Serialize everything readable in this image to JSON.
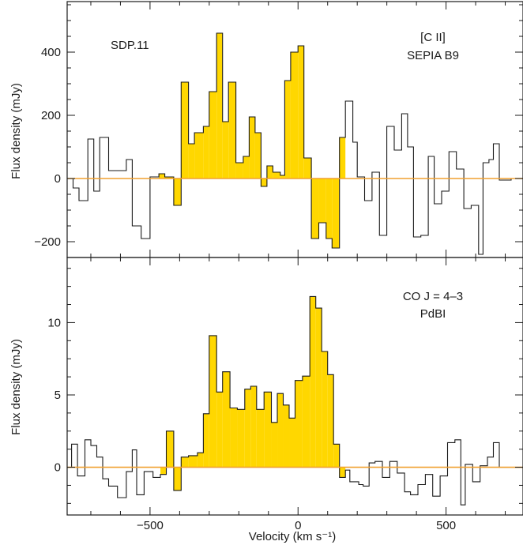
{
  "colors": {
    "fill": "#FFD700",
    "zero_line": "#F0A030",
    "frame": "#1a1a1a",
    "background": "#ffffff"
  },
  "chart_data": [
    {
      "type": "step",
      "label_line1": "[C II]",
      "label_line2": "SEPIA B9",
      "object": "SDP.11",
      "xlabel": "",
      "ylabel": "Flux density (mJy)",
      "xlim": [
        -780,
        760
      ],
      "ylim": [
        -250,
        560
      ],
      "yticks": [
        -200,
        0,
        200,
        400
      ],
      "ytick_labels": [
        "−200",
        "0",
        "200",
        "400"
      ],
      "edges": [
        -780,
        -760,
        -740,
        -710,
        -690,
        -670,
        -640,
        -610,
        -580,
        -560,
        -530,
        -500,
        -470,
        -450,
        -420,
        -395,
        -370,
        -350,
        -320,
        -300,
        -275,
        -255,
        -235,
        -210,
        -185,
        -165,
        -145,
        -125,
        -105,
        -85,
        -60,
        -45,
        -25,
        0,
        20,
        45,
        70,
        95,
        115,
        140,
        160,
        185,
        200,
        225,
        250,
        275,
        300,
        325,
        350,
        370,
        390,
        415,
        440,
        460,
        485,
        510,
        535,
        560,
        585,
        610,
        625,
        645,
        660,
        680,
        705,
        720,
        760
      ],
      "values": [
        0,
        -30,
        -70,
        125,
        -40,
        130,
        25,
        25,
        60,
        -150,
        -190,
        5,
        15,
        5,
        -85,
        305,
        110,
        145,
        165,
        275,
        460,
        180,
        305,
        50,
        70,
        195,
        145,
        -25,
        40,
        20,
        10,
        310,
        400,
        420,
        65,
        -190,
        -140,
        -190,
        -220,
        130,
        245,
        115,
        5,
        -70,
        20,
        -180,
        165,
        90,
        205,
        100,
        -185,
        -180,
        70,
        -80,
        -40,
        85,
        30,
        -95,
        -85,
        -240,
        50,
        60,
        110,
        -5,
        -5,
        0
      ],
      "highlight": [
        -470,
        160
      ]
    },
    {
      "type": "step",
      "label_line1": "CO J = 4–3",
      "label_line2": "PdBI",
      "xlabel": "Velocity (km s⁻¹)",
      "ylabel": "Flux density (mJy)",
      "xlim": [
        -780,
        760
      ],
      "ylim": [
        -3.3,
        14.5
      ],
      "xticks": [
        -500,
        0,
        500
      ],
      "xtick_labels": [
        "−500",
        "0",
        "500"
      ],
      "yticks": [
        0,
        5,
        10
      ],
      "ytick_labels": [
        "0",
        "5",
        "10"
      ],
      "edges": [
        -780,
        -765,
        -745,
        -720,
        -700,
        -680,
        -660,
        -640,
        -610,
        -580,
        -560,
        -545,
        -520,
        -490,
        -465,
        -445,
        -420,
        -395,
        -370,
        -340,
        -320,
        -300,
        -275,
        -255,
        -230,
        -205,
        -180,
        -160,
        -140,
        -115,
        -90,
        -70,
        -50,
        -30,
        -10,
        15,
        40,
        60,
        80,
        100,
        120,
        140,
        160,
        175,
        205,
        220,
        240,
        260,
        285,
        310,
        335,
        360,
        380,
        405,
        430,
        455,
        480,
        505,
        530,
        550,
        565,
        590,
        615,
        640,
        660,
        680,
        695,
        720,
        760
      ],
      "values": [
        0,
        1.6,
        -0.6,
        1.9,
        1.5,
        0.7,
        -0.8,
        -1.3,
        -2.1,
        -0.3,
        1.2,
        -1.9,
        -0.3,
        -0.7,
        -0.5,
        2.5,
        -1.6,
        0.7,
        0.8,
        1.0,
        3.7,
        9.1,
        5.2,
        6.6,
        4.1,
        4.0,
        5.4,
        5.6,
        4.0,
        5.2,
        3.1,
        5.1,
        4.3,
        3.4,
        6.0,
        6.3,
        11.8,
        11.0,
        8.0,
        6.4,
        1.6,
        -0.7,
        -0.2,
        -1.0,
        -1.2,
        -1.3,
        0.3,
        0.4,
        -0.7,
        0.4,
        -0.4,
        -1.7,
        -1.9,
        -1.2,
        -0.5,
        -2.0,
        -0.6,
        1.7,
        1.9,
        -2.6,
        0.2,
        -1.0,
        0.1,
        0.7,
        1.7,
        0.0,
        0,
        0
      ],
      "highlight": [
        -470,
        160
      ]
    }
  ]
}
